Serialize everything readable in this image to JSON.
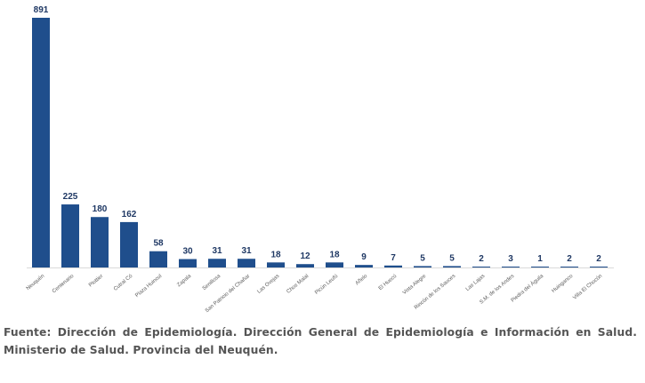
{
  "chart_data": {
    "type": "bar",
    "title": "",
    "xlabel": "",
    "ylabel": "",
    "ylim": [
      0,
      891
    ],
    "grid": false,
    "bar_color": "#1F4E8C",
    "categories": [
      "Neuquén",
      "Centenario",
      "Plottier",
      "Cutral Có",
      "Plaza Huincul",
      "Zapala",
      "Senillosa",
      "San Patricio del Chañar",
      "Las Ovejas",
      "Chos Malal",
      "Picún Leufú",
      "Añelo",
      "El Huecú",
      "Vista Alegre",
      "Rincón de los Sauces",
      "Las Lajas",
      "S.M. de los Andes",
      "Piedra del Águila",
      "Huinganco",
      "Villa El Chocón"
    ],
    "values": [
      891,
      225,
      180,
      162,
      58,
      30,
      31,
      31,
      18,
      12,
      18,
      9,
      7,
      5,
      5,
      2,
      3,
      1,
      2,
      2
    ]
  },
  "caption": "Fuente: Dirección de Epidemiología. Dirección General de Epidemiología e Información en Salud. Ministerio de Salud. Provincia del Neuquén."
}
